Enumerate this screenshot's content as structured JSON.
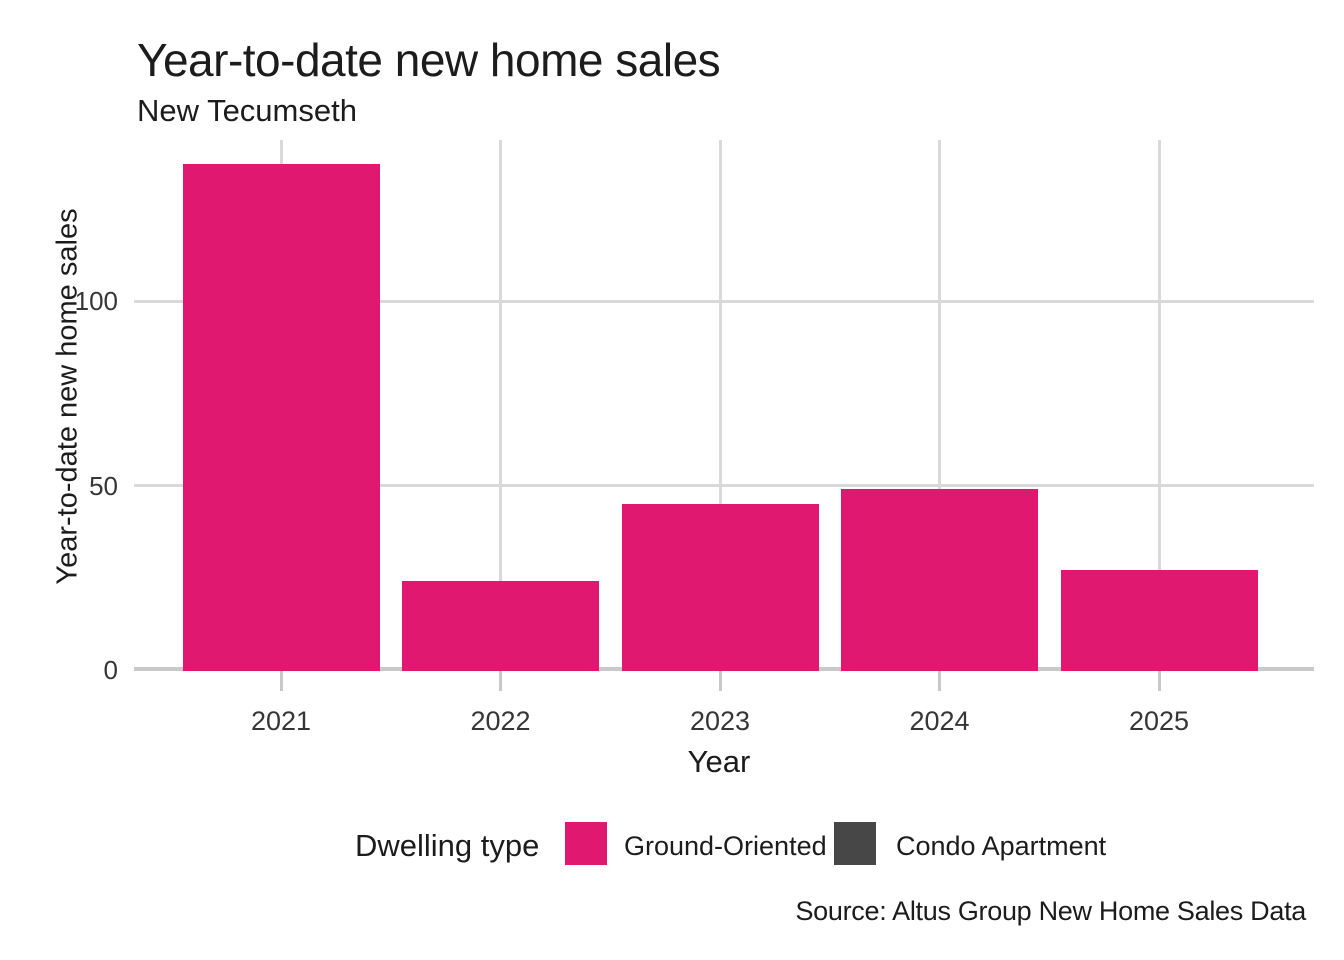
{
  "header": {
    "title": "Year-to-date new home sales",
    "subtitle": "New Tecumseth"
  },
  "chart_data": {
    "type": "bar",
    "title": "Year-to-date new home sales",
    "subtitle": "New Tecumseth",
    "xlabel": "Year",
    "ylabel": "Year-to-date new home sales",
    "categories": [
      "2021",
      "2022",
      "2023",
      "2024",
      "2025"
    ],
    "series": [
      {
        "name": "Ground-Oriented",
        "color": "#E0186F",
        "values": [
          137,
          24,
          45,
          49,
          27
        ]
      },
      {
        "name": "Condo Apartment",
        "color": "#474747",
        "values": [
          0,
          0,
          0,
          0,
          0
        ]
      }
    ],
    "yticks": [
      0,
      50,
      100
    ],
    "ylim": [
      0,
      143
    ],
    "grid": "on",
    "legend_title": "Dwelling type",
    "legend_position": "bottom"
  },
  "legend": {
    "title": "Dwelling type",
    "items": [
      {
        "label": "Ground-Oriented",
        "color": "#E0186F"
      },
      {
        "label": "Condo Apartment",
        "color": "#474747"
      }
    ]
  },
  "source": {
    "text": "Source: Altus Group New Home Sales Data"
  },
  "colors": {
    "accent": "#E0186F",
    "dark": "#474747",
    "gridline": "#D9D9D9",
    "axis_line": "#C9C9C9",
    "text": "#1C1C1C",
    "tick_text": "#363636"
  }
}
